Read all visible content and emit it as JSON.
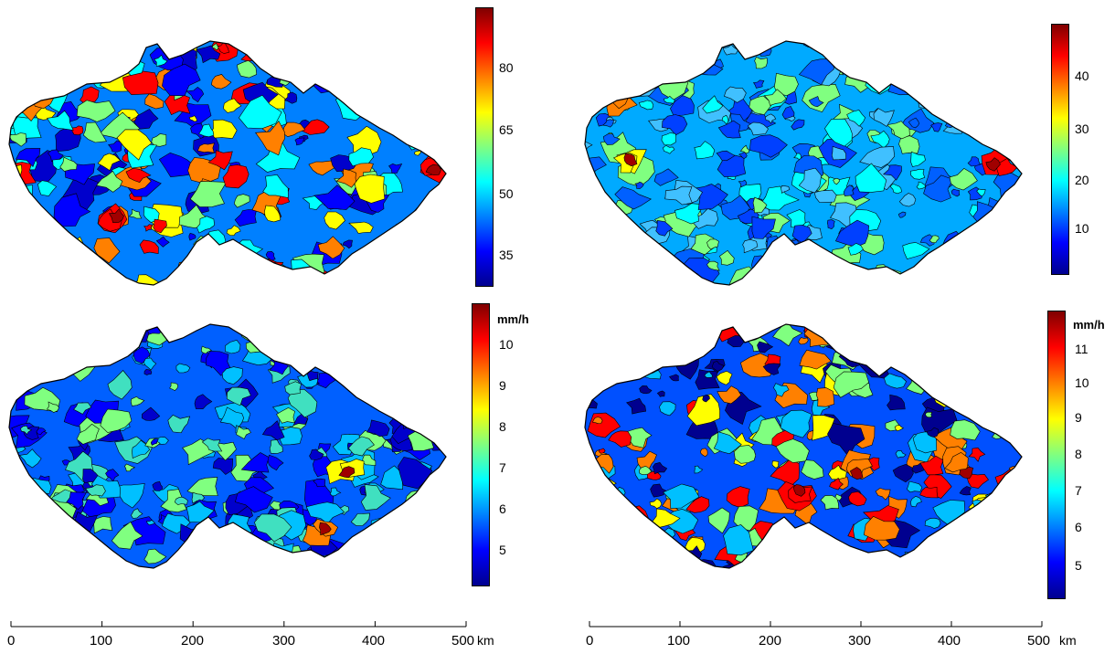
{
  "panels": [
    {
      "id": "top-left",
      "colorbar": {
        "ticks": [
          "80",
          "65",
          "50",
          "35"
        ],
        "unit": ""
      }
    },
    {
      "id": "top-right",
      "colorbar": {
        "ticks": [
          "40",
          "30",
          "20",
          "10"
        ],
        "unit": ""
      }
    },
    {
      "id": "bottom-left",
      "colorbar": {
        "ticks": [
          "10",
          "9",
          "8",
          "7",
          "6",
          "5"
        ],
        "unit": "mm/h"
      }
    },
    {
      "id": "bottom-right",
      "colorbar": {
        "ticks": [
          "11",
          "10",
          "9",
          "8",
          "7",
          "6",
          "5"
        ],
        "unit": "mm/h"
      }
    }
  ],
  "scale_axes": [
    {
      "ticks": [
        "0",
        "100",
        "200",
        "300",
        "400",
        "500"
      ],
      "unit": "km"
    },
    {
      "ticks": [
        "0",
        "100",
        "200",
        "300",
        "400",
        "500"
      ],
      "unit": "km"
    }
  ],
  "colormap": [
    "#00008f",
    "#0000ff",
    "#0080ff",
    "#00ffff",
    "#80ff80",
    "#ffff00",
    "#ff8000",
    "#ff0000",
    "#800000"
  ]
}
